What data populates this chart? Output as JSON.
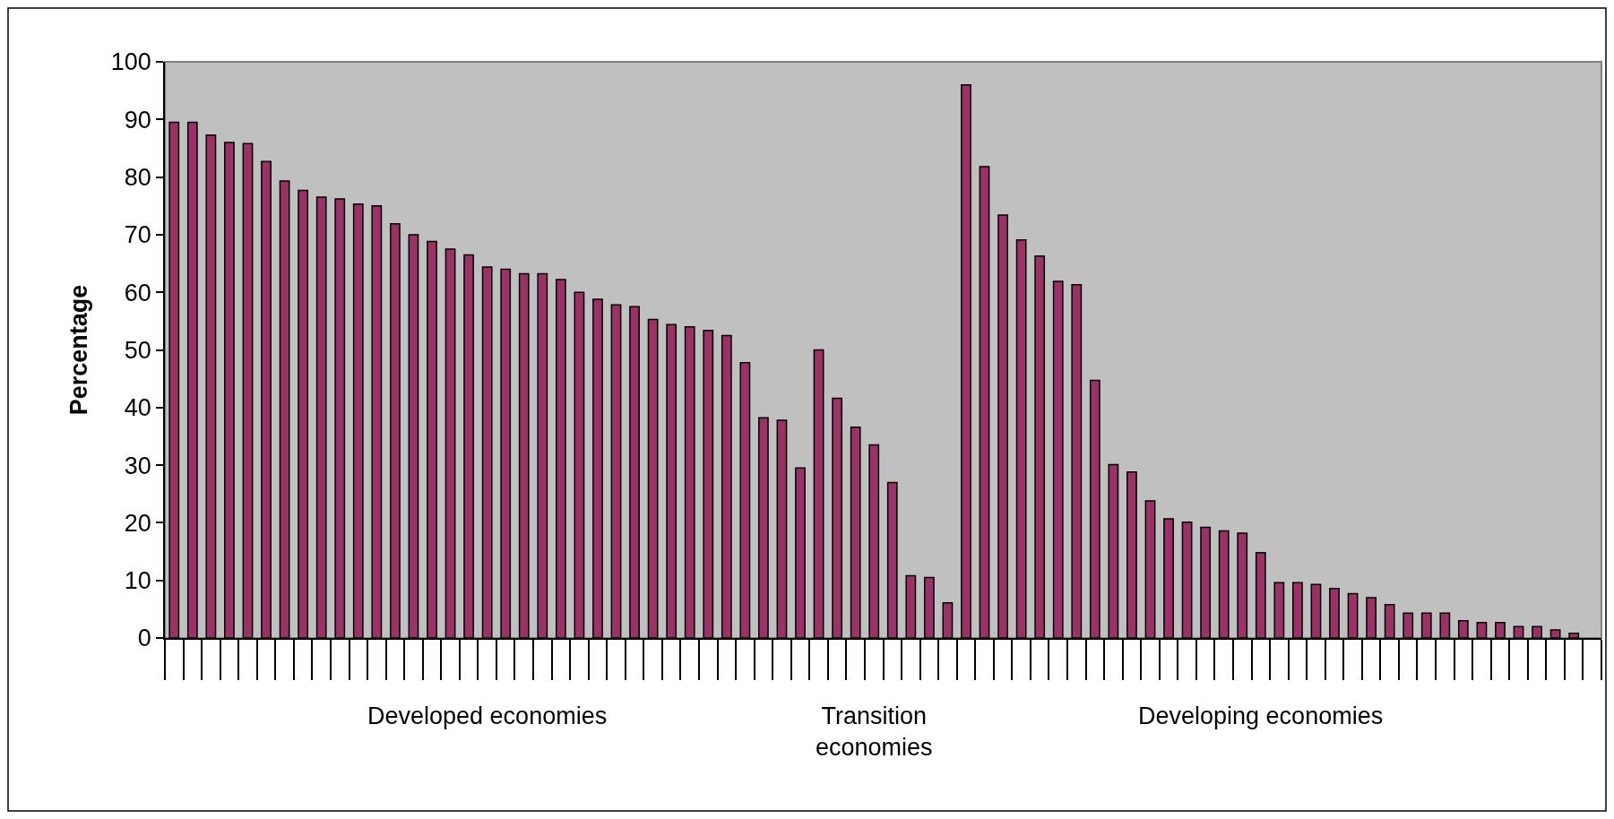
{
  "chart_data": {
    "type": "bar",
    "ylabel": "Percentage",
    "color": "#993366",
    "ylim": [
      0,
      100
    ],
    "yticks": [
      0,
      10,
      20,
      30,
      40,
      50,
      60,
      70,
      80,
      90,
      100
    ],
    "grid": false,
    "legend": false,
    "categories": [
      null,
      null,
      null,
      null,
      null,
      null,
      null,
      null,
      null,
      null,
      null,
      null,
      null,
      null,
      null,
      null,
      null,
      "Developed economies",
      null,
      null,
      null,
      null,
      null,
      null,
      null,
      null,
      null,
      null,
      null,
      null,
      null,
      null,
      null,
      null,
      null,
      null,
      null,
      null,
      "Transition\neconomies",
      null,
      null,
      null,
      null,
      null,
      null,
      null,
      null,
      null,
      null,
      null,
      null,
      null,
      null,
      null,
      null,
      null,
      null,
      null,
      null,
      "Developing economies",
      null,
      null,
      null,
      null,
      null,
      null,
      null,
      null,
      null,
      null,
      null,
      null,
      null,
      null,
      null,
      null,
      null,
      null
    ],
    "values": [
      89.5,
      89.5,
      87.3,
      86,
      85.8,
      82.7,
      79.3,
      77.7,
      76.5,
      76.2,
      75.3,
      75,
      71.9,
      70,
      68.8,
      67.5,
      66.5,
      64.4,
      64,
      63.2,
      63.2,
      62.2,
      60,
      58.8,
      57.8,
      57.5,
      55.3,
      54.4,
      54,
      53.4,
      52.5,
      47.8,
      38.2,
      37.8,
      29.5,
      50,
      41.6,
      36.6,
      33.5,
      27,
      10.8,
      10.5,
      6.1,
      96,
      81.8,
      73.4,
      69.1,
      66.3,
      61.9,
      61.3,
      44.7,
      30.1,
      28.8,
      23.8,
      20.7,
      20.1,
      19.2,
      18.6,
      18.2,
      14.8,
      9.6,
      9.6,
      9.3,
      8.6,
      7.7,
      7,
      5.8,
      4.3,
      4.3,
      4.3,
      3,
      2.7,
      2.7,
      2,
      2,
      1.4,
      0.8,
      null
    ]
  }
}
